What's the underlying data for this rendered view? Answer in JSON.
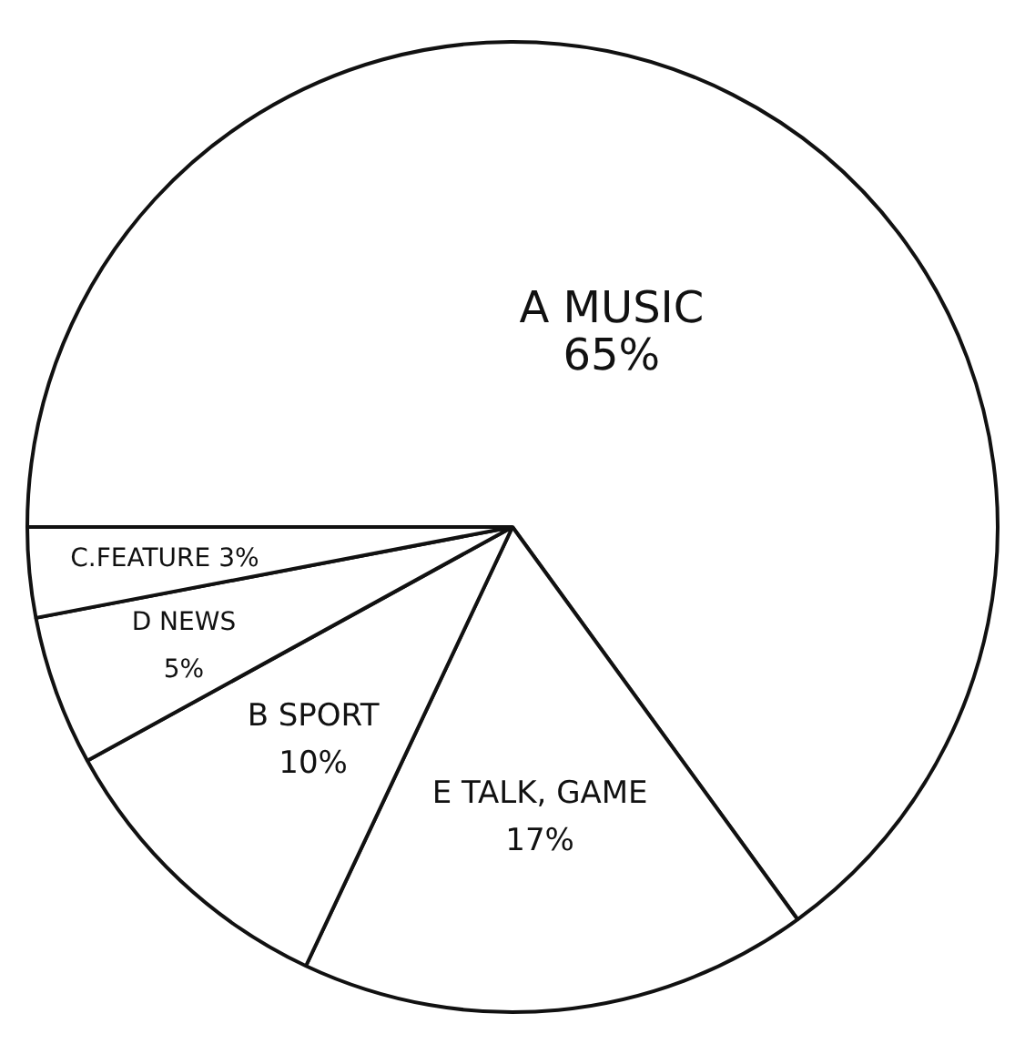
{
  "chart_data": {
    "type": "pie",
    "categories": [
      "A MUSIC",
      "E TALK, GAME",
      "B SPORT",
      "D NEWS",
      "C.FEATURE"
    ],
    "values": [
      65,
      17,
      10,
      5,
      3
    ],
    "value_labels": [
      "65%",
      "17%",
      "10%",
      "5%",
      "3%"
    ],
    "colors": [
      "#ffffff",
      "#ffffff",
      "#ffffff",
      "#ffffff",
      "#ffffff"
    ],
    "legend": false
  }
}
